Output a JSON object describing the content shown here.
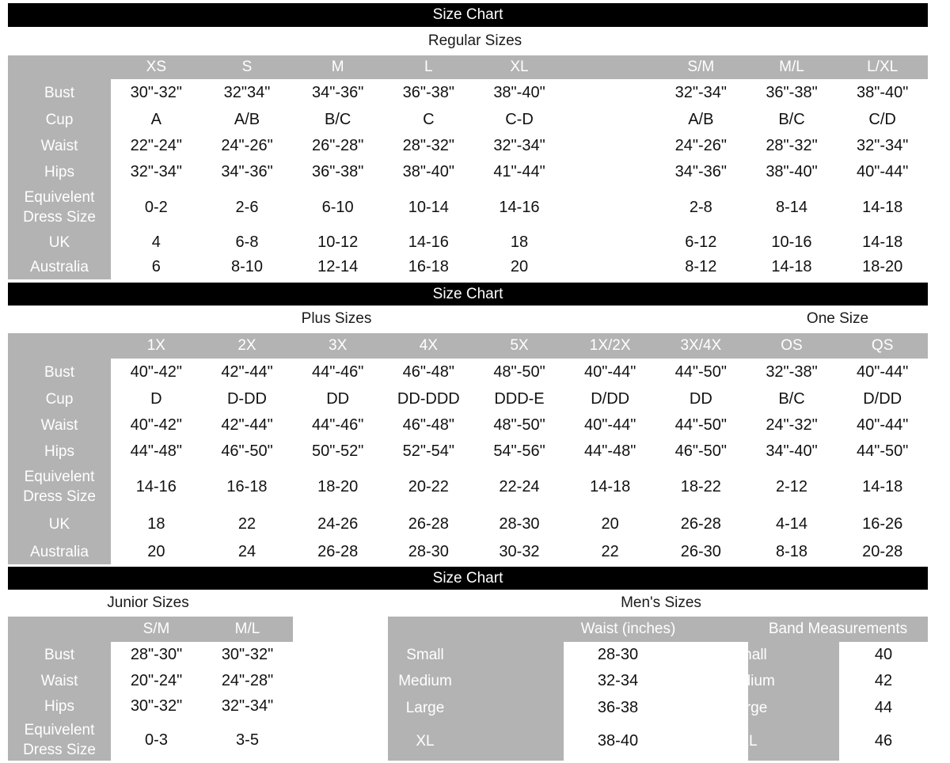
{
  "colors": {
    "bar": "#000000",
    "gray": "#b3b3b3",
    "value_text": "#111111"
  },
  "sections": [
    {
      "bar_title": "Size Chart",
      "heading": "Regular Sizes",
      "columns": [
        "XS",
        "S",
        "M",
        "L",
        "XL",
        "",
        "S/M",
        "M/L",
        "L/XL"
      ],
      "rows": [
        {
          "label": "Bust",
          "values": [
            "30\"-32\"",
            "32\"34\"",
            "34\"-36\"",
            "36\"-38\"",
            "38\"-40\"",
            "",
            "32\"-34\"",
            "36\"-38\"",
            "38\"-40\""
          ]
        },
        {
          "label": "Cup",
          "values": [
            "A",
            "A/B",
            "B/C",
            "C",
            "C-D",
            "",
            "A/B",
            "B/C",
            "C/D"
          ]
        },
        {
          "label": "Waist",
          "values": [
            "22\"-24\"",
            "24\"-26\"",
            "26\"-28\"",
            "28\"-32\"",
            "32\"-34\"",
            "",
            "24\"-26\"",
            "28\"-32\"",
            "32\"-34\""
          ]
        },
        {
          "label": "Hips",
          "values": [
            "32\"-34\"",
            "34\"-36\"",
            "36\"-38\"",
            "38\"-40\"",
            "41\"-44\"",
            "",
            "34\"-36\"",
            "38\"-40\"",
            "40\"-44\""
          ]
        },
        {
          "label": "Equivelent Dress Size",
          "values": [
            "0-2",
            "2-6",
            "6-10",
            "10-14",
            "14-16",
            "",
            "2-8",
            "8-14",
            "14-18"
          ]
        },
        {
          "label": "UK",
          "values": [
            "4",
            "6-8",
            "10-12",
            "14-16",
            "18",
            "",
            "6-12",
            "10-16",
            "14-18"
          ]
        },
        {
          "label": "Australia",
          "values": [
            "6",
            "8-10",
            "12-14",
            "16-18",
            "20",
            "",
            "8-12",
            "14-18",
            "18-20"
          ]
        }
      ]
    },
    {
      "bar_title": "Size Chart",
      "heading": "Plus Sizes",
      "heading2": "One Size",
      "columns": [
        "1X",
        "2X",
        "3X",
        "4X",
        "5X",
        "1X/2X",
        "3X/4X",
        "OS",
        "QS"
      ],
      "rows": [
        {
          "label": "Bust",
          "values": [
            "40\"-42\"",
            "42\"-44\"",
            "44\"-46\"",
            "46\"-48\"",
            "48\"-50\"",
            "40\"-44\"",
            "44\"-50\"",
            "32\"-38\"",
            "40\"-44\""
          ]
        },
        {
          "label": "Cup",
          "values": [
            "D",
            "D-DD",
            "DD",
            "DD-DDD",
            "DDD-E",
            "D/DD",
            "DD",
            "B/C",
            "D/DD"
          ]
        },
        {
          "label": "Waist",
          "values": [
            "40\"-42\"",
            "42\"-44\"",
            "44\"-46\"",
            "46\"-48\"",
            "48\"-50\"",
            "40\"-44\"",
            "44\"-50\"",
            "24\"-32\"",
            "40\"-44\""
          ]
        },
        {
          "label": "Hips",
          "values": [
            "44\"-48\"",
            "46\"-50\"",
            "50\"-52\"",
            "52\"-54\"",
            "54\"-56\"",
            "44\"-48\"",
            "46\"-50\"",
            "34\"-40\"",
            "44\"-50\""
          ]
        },
        {
          "label": "Equivelent Dress Size",
          "values": [
            "14-16",
            "16-18",
            "18-20",
            "20-22",
            "22-24",
            "14-18",
            "18-22",
            "2-12",
            "14-18"
          ]
        },
        {
          "label": "UK",
          "values": [
            "18",
            "22",
            "24-26",
            "26-28",
            "28-30",
            "20",
            "26-28",
            "4-14",
            "16-26"
          ]
        },
        {
          "label": "Australia",
          "values": [
            "20",
            "24",
            "26-28",
            "28-30",
            "30-32",
            "22",
            "26-30",
            "8-18",
            "20-28"
          ]
        }
      ]
    },
    {
      "bar_title": "Size Chart",
      "junior": {
        "heading": "Junior Sizes",
        "columns": [
          "S/M",
          "M/L"
        ],
        "rows": [
          {
            "label": "Bust",
            "values": [
              "28\"-30\"",
              "30\"-32\""
            ]
          },
          {
            "label": "Waist",
            "values": [
              "20\"-24\"",
              "24\"-28\""
            ]
          },
          {
            "label": "Hips",
            "values": [
              "30\"-32\"",
              "32\"-34\""
            ]
          },
          {
            "label": "Equivelent Dress Size",
            "values": [
              "0-3",
              "3-5"
            ]
          }
        ]
      },
      "mens": {
        "heading": "Men's Sizes",
        "waist_header": "Waist (inches)",
        "band_header": "Band Measurements",
        "rows": [
          {
            "label": "Small",
            "waist": "28-30",
            "band_label": "Small",
            "band": "40"
          },
          {
            "label": "Medium",
            "waist": "32-34",
            "band_label": "Medium",
            "band": "42"
          },
          {
            "label": "Large",
            "waist": "36-38",
            "band_label": "Large",
            "band": "44"
          },
          {
            "label": "XL",
            "waist": "38-40",
            "band_label": "XL",
            "band": "46"
          }
        ]
      }
    }
  ]
}
